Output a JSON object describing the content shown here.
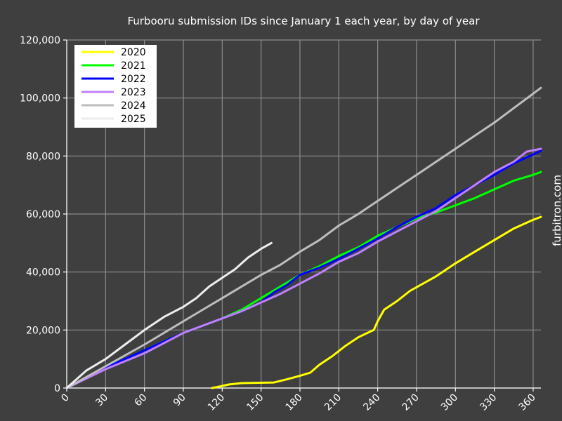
{
  "chart_data": {
    "type": "line",
    "title": "Furbooru submission IDs since January 1 each year, by day of year",
    "xlabel": "",
    "ylabel": "",
    "credit": "furbitron.com",
    "xlim": [
      0,
      366
    ],
    "ylim": [
      0,
      120000
    ],
    "xticks": [
      0,
      30,
      60,
      90,
      120,
      150,
      180,
      210,
      240,
      270,
      300,
      330,
      360
    ],
    "yticks": [
      0,
      20000,
      40000,
      60000,
      80000,
      100000,
      120000
    ],
    "xtick_labels": [
      "0",
      "30",
      "60",
      "90",
      "120",
      "150",
      "180",
      "210",
      "240",
      "270",
      "300",
      "330",
      "360"
    ],
    "ytick_labels": [
      "0",
      "20,000",
      "40,000",
      "60,000",
      "80,000",
      "100,000",
      "120,000"
    ],
    "grid": true,
    "legend_position": "top-left",
    "series": [
      {
        "name": "2020",
        "color": "#ffff00",
        "points": [
          [
            112,
            0
          ],
          [
            118,
            500
          ],
          [
            125,
            1200
          ],
          [
            135,
            1700
          ],
          [
            145,
            1800
          ],
          [
            160,
            1900
          ],
          [
            170,
            3000
          ],
          [
            180,
            4200
          ],
          [
            188,
            5300
          ],
          [
            195,
            8000
          ],
          [
            205,
            11000
          ],
          [
            215,
            14500
          ],
          [
            225,
            17500
          ],
          [
            232,
            19000
          ],
          [
            237,
            20000
          ],
          [
            240,
            23000
          ],
          [
            245,
            27000
          ],
          [
            255,
            30000
          ],
          [
            265,
            33500
          ],
          [
            275,
            36000
          ],
          [
            285,
            38500
          ],
          [
            300,
            43000
          ],
          [
            315,
            47000
          ],
          [
            330,
            51000
          ],
          [
            345,
            55000
          ],
          [
            360,
            58000
          ],
          [
            366,
            59000
          ]
        ]
      },
      {
        "name": "2021",
        "color": "#00ff00",
        "points": [
          [
            0,
            0
          ],
          [
            30,
            7000
          ],
          [
            60,
            13000
          ],
          [
            90,
            19000
          ],
          [
            120,
            24000
          ],
          [
            135,
            27000
          ],
          [
            150,
            31000
          ],
          [
            165,
            35000
          ],
          [
            180,
            39000
          ],
          [
            195,
            42000
          ],
          [
            210,
            45500
          ],
          [
            225,
            48500
          ],
          [
            240,
            52500
          ],
          [
            255,
            55500
          ],
          [
            270,
            58500
          ],
          [
            285,
            60500
          ],
          [
            300,
            63000
          ],
          [
            315,
            65500
          ],
          [
            330,
            68500
          ],
          [
            345,
            71500
          ],
          [
            360,
            73500
          ],
          [
            366,
            74500
          ]
        ]
      },
      {
        "name": "2022",
        "color": "#0000ff",
        "points": [
          [
            0,
            0
          ],
          [
            30,
            7000
          ],
          [
            60,
            13000
          ],
          [
            90,
            19000
          ],
          [
            120,
            24000
          ],
          [
            135,
            26500
          ],
          [
            150,
            29500
          ],
          [
            160,
            33000
          ],
          [
            170,
            35500
          ],
          [
            180,
            39000
          ],
          [
            195,
            41500
          ],
          [
            210,
            44500
          ],
          [
            225,
            48000
          ],
          [
            240,
            51500
          ],
          [
            255,
            55500
          ],
          [
            270,
            59000
          ],
          [
            285,
            62000
          ],
          [
            300,
            66500
          ],
          [
            315,
            70000
          ],
          [
            330,
            73500
          ],
          [
            345,
            77500
          ],
          [
            360,
            80500
          ],
          [
            366,
            81800
          ]
        ]
      },
      {
        "name": "2023",
        "color": "#c080ff",
        "points": [
          [
            0,
            0
          ],
          [
            30,
            6500
          ],
          [
            60,
            12000
          ],
          [
            90,
            19000
          ],
          [
            120,
            24000
          ],
          [
            135,
            26500
          ],
          [
            150,
            29500
          ],
          [
            165,
            32500
          ],
          [
            180,
            36000
          ],
          [
            195,
            39500
          ],
          [
            210,
            43500
          ],
          [
            225,
            46500
          ],
          [
            240,
            50500
          ],
          [
            255,
            54000
          ],
          [
            270,
            57500
          ],
          [
            285,
            61000
          ],
          [
            300,
            65500
          ],
          [
            315,
            70000
          ],
          [
            330,
            74500
          ],
          [
            345,
            78000
          ],
          [
            355,
            81500
          ],
          [
            366,
            82500
          ]
        ]
      },
      {
        "name": "2024",
        "color": "#bdbdbd",
        "points": [
          [
            0,
            0
          ],
          [
            30,
            7500
          ],
          [
            60,
            15000
          ],
          [
            90,
            23000
          ],
          [
            105,
            27000
          ],
          [
            120,
            31000
          ],
          [
            135,
            35000
          ],
          [
            150,
            39000
          ],
          [
            165,
            42500
          ],
          [
            180,
            47000
          ],
          [
            195,
            51000
          ],
          [
            210,
            56000
          ],
          [
            225,
            60000
          ],
          [
            240,
            64500
          ],
          [
            255,
            69000
          ],
          [
            270,
            73500
          ],
          [
            285,
            78000
          ],
          [
            300,
            82500
          ],
          [
            315,
            87000
          ],
          [
            330,
            91500
          ],
          [
            345,
            96500
          ],
          [
            360,
            101500
          ],
          [
            366,
            103500
          ]
        ]
      },
      {
        "name": "2025",
        "color": "#ededed",
        "points": [
          [
            0,
            0
          ],
          [
            15,
            6000
          ],
          [
            30,
            10000
          ],
          [
            45,
            15000
          ],
          [
            60,
            20000
          ],
          [
            75,
            24500
          ],
          [
            90,
            28000
          ],
          [
            100,
            31000
          ],
          [
            110,
            35000
          ],
          [
            120,
            38000
          ],
          [
            130,
            41000
          ],
          [
            140,
            45000
          ],
          [
            150,
            48000
          ],
          [
            158,
            50000
          ]
        ]
      }
    ]
  }
}
